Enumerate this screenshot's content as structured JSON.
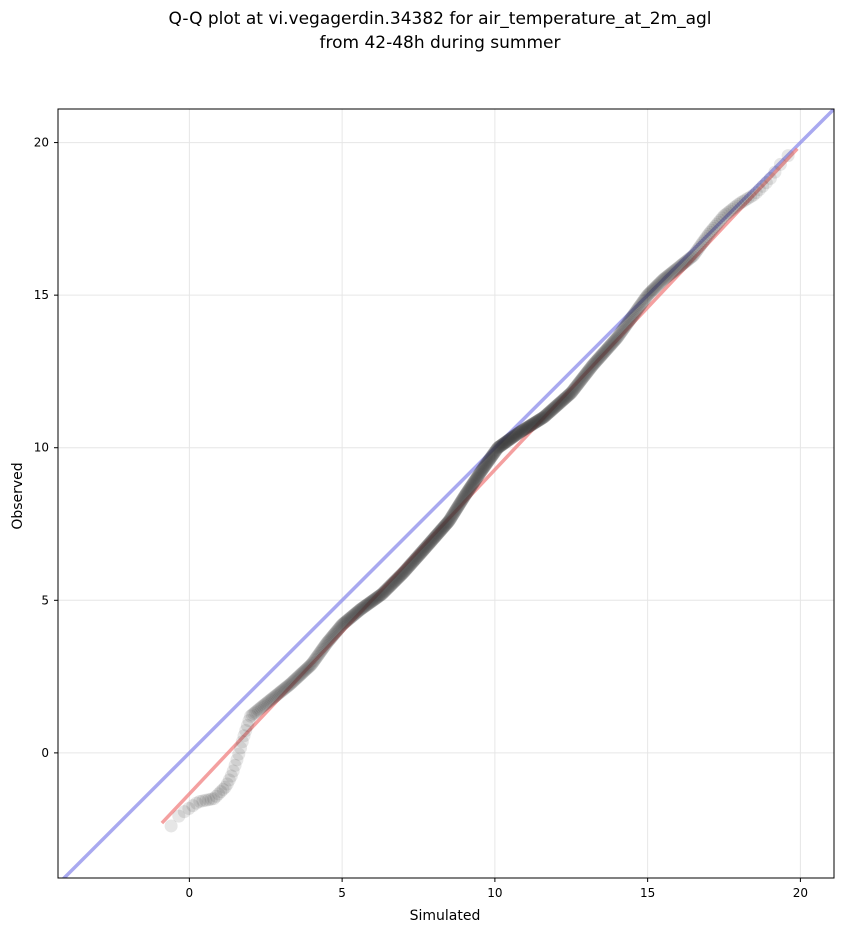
{
  "chart_data": {
    "type": "scatter",
    "title_line1": "Q-Q plot at vi.vegagerdin.34382 for air_temperature_at_2m_agl",
    "title_line2": "from 42-48h during summer",
    "xlabel": "Simulated",
    "ylabel": "Observed",
    "xlim": [
      -4.3,
      21.1
    ],
    "ylim": [
      -4.1,
      21.1
    ],
    "xticks": [
      0,
      5,
      10,
      15,
      20
    ],
    "yticks": [
      0,
      5,
      10,
      15,
      20
    ],
    "grid": true,
    "colors": {
      "points": "#333333",
      "fit_line": "#f08080",
      "identity_line": "#8c8ceb",
      "grid": "#e6e6e6"
    },
    "fit_line": {
      "x": [
        -0.9,
        19.9
      ],
      "y": [
        -2.3,
        19.8
      ]
    },
    "identity_line": {
      "x": [
        -4.3,
        21.1
      ],
      "y": [
        -4.3,
        21.1
      ]
    },
    "qq_knots": [
      [
        -0.9,
        -2.95
      ],
      [
        -0.7,
        -2.6
      ],
      [
        -0.5,
        -2.2
      ],
      [
        -0.2,
        -1.95
      ],
      [
        0.3,
        -1.6
      ],
      [
        0.8,
        -1.5
      ],
      [
        1.2,
        -1.1
      ],
      [
        1.4,
        -0.7
      ],
      [
        1.6,
        -0.1
      ],
      [
        1.8,
        0.6
      ],
      [
        2.0,
        1.2
      ],
      [
        2.3,
        1.45
      ],
      [
        2.8,
        1.85
      ],
      [
        3.3,
        2.25
      ],
      [
        4.0,
        2.9
      ],
      [
        4.5,
        3.6
      ],
      [
        5.0,
        4.2
      ],
      [
        5.6,
        4.7
      ],
      [
        6.3,
        5.2
      ],
      [
        7.0,
        5.9
      ],
      [
        7.8,
        6.8
      ],
      [
        8.5,
        7.6
      ],
      [
        9.0,
        8.4
      ],
      [
        9.6,
        9.3
      ],
      [
        10.1,
        10.0
      ],
      [
        10.8,
        10.5
      ],
      [
        11.6,
        11.0
      ],
      [
        12.5,
        11.8
      ],
      [
        13.2,
        12.7
      ],
      [
        14.0,
        13.6
      ],
      [
        14.5,
        14.3
      ],
      [
        15.0,
        15.0
      ],
      [
        15.5,
        15.5
      ],
      [
        16.5,
        16.3
      ],
      [
        17.0,
        17.0
      ],
      [
        17.5,
        17.6
      ],
      [
        18.0,
        18.0
      ],
      [
        18.5,
        18.3
      ],
      [
        19.0,
        18.8
      ],
      [
        19.5,
        19.5
      ],
      [
        19.9,
        19.8
      ]
    ],
    "n_points": 620
  }
}
